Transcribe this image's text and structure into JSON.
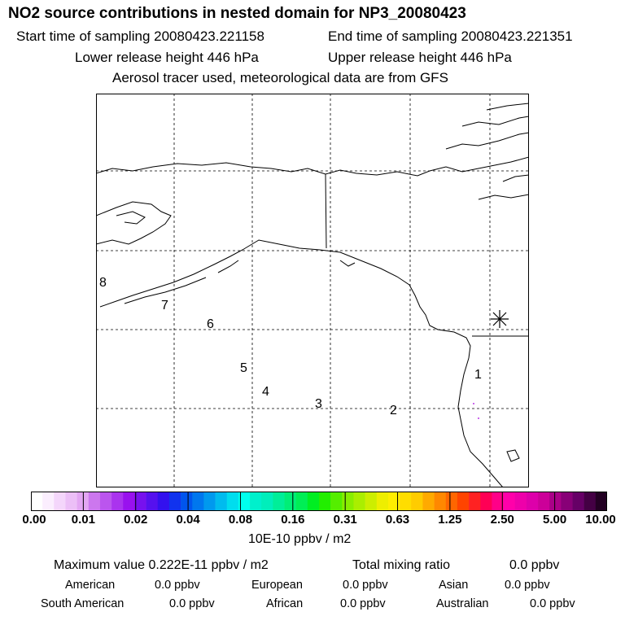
{
  "header": {
    "title": "NO2 source contributions in nested domain for NP3_20080423",
    "start_time": "Start time of sampling 20080423.221158",
    "end_time": "End time of sampling 20080423.221351",
    "lower_release": "Lower release height  446 hPa",
    "upper_release": "Upper release height  446 hPa",
    "tracer_note": "Aerosol tracer used, meteorological data are from GFS"
  },
  "map": {
    "trajectory_labels": [
      "1",
      "2",
      "3",
      "4",
      "5",
      "6",
      "7",
      "8"
    ],
    "marker": "asterisk",
    "colors": {
      "coast": "#000000",
      "grid": "#000000",
      "plume": "#cc66ee"
    }
  },
  "colorbar": {
    "ticks": [
      "0.00",
      "0.01",
      "0.02",
      "0.04",
      "0.08",
      "0.16",
      "0.31",
      "0.63",
      "1.25",
      "2.50",
      "5.00",
      "10.00"
    ],
    "units": "10E-10 ppbv / m2",
    "colors": [
      "#ffffff",
      "#fbeefe",
      "#f4d6fb",
      "#ecbff7",
      "#e3a6f3",
      "#cc77ee",
      "#bb55ee",
      "#aa33ee",
      "#9911ee",
      "#7711ee",
      "#5511ee",
      "#3311ee",
      "#1133ee",
      "#0055ee",
      "#0077ee",
      "#0099ee",
      "#00bbee",
      "#00ddee",
      "#00ffee",
      "#00f0cc",
      "#00eebb",
      "#00ee99",
      "#00ee77",
      "#00ee55",
      "#00ee22",
      "#22ee00",
      "#55ee00",
      "#88ee00",
      "#aaee00",
      "#ccee00",
      "#eeee00",
      "#ffee00",
      "#ffdd00",
      "#ffcc00",
      "#ffaa00",
      "#ff8800",
      "#ff6600",
      "#ff4400",
      "#ff2222",
      "#ff0055",
      "#ff0088",
      "#ff00aa",
      "#ee00aa",
      "#dd00aa",
      "#cc0099",
      "#aa0088",
      "#880077",
      "#660066",
      "#440044",
      "#220022"
    ]
  },
  "stats": {
    "max_value": "Maximum value  0.222E-11 ppbv / m2",
    "total_label": "Total mixing ratio",
    "total_value": "0.0 ppbv",
    "regions": [
      {
        "label": "American",
        "value": "0.0 ppbv"
      },
      {
        "label": "European",
        "value": "0.0 ppbv"
      },
      {
        "label": "Asian",
        "value": "0.0 ppbv"
      },
      {
        "label": "South American",
        "value": "0.0 ppbv"
      },
      {
        "label": "African",
        "value": "0.0 ppbv"
      },
      {
        "label": "Australian",
        "value": "0.0 ppbv"
      }
    ]
  }
}
